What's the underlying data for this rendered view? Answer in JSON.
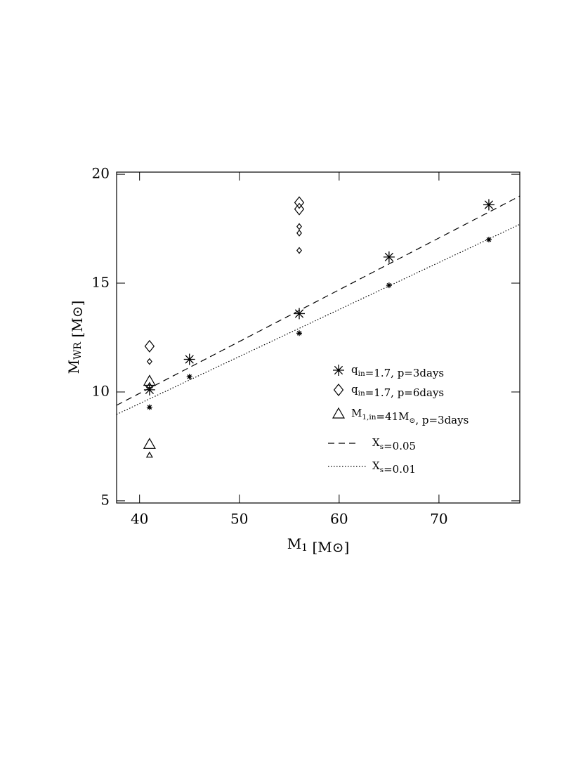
{
  "chart_data": {
    "type": "scatter",
    "xlabel": "M_1 [M⊙]",
    "ylabel": "M_{WR} [M⊙]",
    "xlim": [
      37.7,
      78.1
    ],
    "ylim": [
      4.9,
      20.1
    ],
    "xticks": [
      40,
      50,
      60,
      70
    ],
    "yticks": [
      5,
      10,
      15,
      20
    ],
    "legend": "right",
    "series": [
      {
        "name": "q_{in}=1.7, p=3days",
        "marker": "asterisk",
        "color": "#000000",
        "x": [
          41,
          41,
          45,
          45,
          56,
          56,
          65,
          65,
          75,
          75
        ],
        "values": [
          10.1,
          9.3,
          11.5,
          10.7,
          13.6,
          12.7,
          16.2,
          14.9,
          18.6,
          17.0
        ],
        "marker_size": [
          "large",
          "small",
          "large",
          "small",
          "large",
          "small",
          "large",
          "small",
          "large",
          "small"
        ]
      },
      {
        "name": "q_{in}=1.7, p=6days",
        "marker": "diamond",
        "color": "#000000",
        "x": [
          41,
          41,
          56,
          56,
          56,
          56,
          56
        ],
        "values": [
          12.1,
          11.4,
          18.7,
          18.4,
          17.6,
          17.3,
          16.5
        ],
        "marker_size": [
          "large",
          "small",
          "large",
          "large",
          "small",
          "small",
          "small"
        ]
      },
      {
        "name": "M_{1,in}=41M_⊙, p=3days",
        "marker": "triangle",
        "color": "#000000",
        "x": [
          41,
          41,
          41,
          41
        ],
        "values": [
          10.5,
          10.3,
          7.6,
          7.1
        ],
        "marker_size": [
          "large",
          "small",
          "large",
          "small"
        ]
      },
      {
        "name": "X_s=0.05",
        "line": "dashed",
        "color": "#000000",
        "x": [
          37.7,
          78.1
        ],
        "values": [
          9.39,
          19.0
        ]
      },
      {
        "name": "X_s=0.01",
        "line": "dotted",
        "color": "#000000",
        "x": [
          37.7,
          78.1
        ],
        "values": [
          8.97,
          17.7
        ]
      }
    ]
  }
}
